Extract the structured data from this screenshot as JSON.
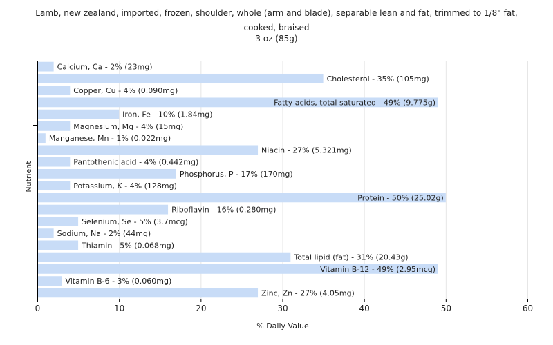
{
  "chart_data": {
    "type": "bar",
    "orientation": "horizontal",
    "title_lines": [
      "Lamb, new zealand, imported, frozen, shoulder, whole (arm and blade), separable lean and fat, trimmed to 1/8\" fat,",
      "cooked, braised",
      "3 oz (85g)"
    ],
    "xlabel": "% Daily Value",
    "ylabel": "Nutrient",
    "xlim": [
      0,
      60
    ],
    "xticks": [
      0,
      10,
      20,
      30,
      40,
      50,
      60
    ],
    "grid": true,
    "bar_color": "#c8dcf7",
    "categories": [
      "Calcium, Ca",
      "Cholesterol",
      "Copper, Cu",
      "Fatty acids, total saturated",
      "Iron, Fe",
      "Magnesium, Mg",
      "Manganese, Mn",
      "Niacin",
      "Pantothenic acid",
      "Phosphorus, P",
      "Potassium, K",
      "Protein",
      "Riboflavin",
      "Selenium, Se",
      "Sodium, Na",
      "Thiamin",
      "Total lipid (fat)",
      "Vitamin B-12",
      "Vitamin B-6",
      "Zinc, Zn"
    ],
    "values": [
      2,
      35,
      4,
      49,
      10,
      4,
      1,
      27,
      4,
      17,
      4,
      50,
      16,
      5,
      2,
      5,
      31,
      49,
      3,
      27
    ],
    "labels": [
      "Calcium, Ca - 2% (23mg)",
      "Cholesterol - 35% (105mg)",
      "Copper, Cu - 4% (0.090mg)",
      "Fatty acids, total saturated - 49% (9.775g)",
      "Iron, Fe - 10% (1.84mg)",
      "Magnesium, Mg - 4% (15mg)",
      "Manganese, Mn - 1% (0.022mg)",
      "Niacin - 27% (5.321mg)",
      "Pantothenic acid - 4% (0.442mg)",
      "Phosphorus, P - 17% (170mg)",
      "Potassium, K - 4% (128mg)",
      "Protein - 50% (25.02g)",
      "Riboflavin - 16% (0.280mg)",
      "Selenium, Se - 5% (3.7mcg)",
      "Sodium, Na - 2% (44mg)",
      "Thiamin - 5% (0.068mg)",
      "Total lipid (fat) - 31% (20.43g)",
      "Vitamin B-12 - 49% (2.95mcg)",
      "Vitamin B-6 - 3% (0.060mg)",
      "Zinc, Zn - 27% (4.05mg)"
    ]
  }
}
